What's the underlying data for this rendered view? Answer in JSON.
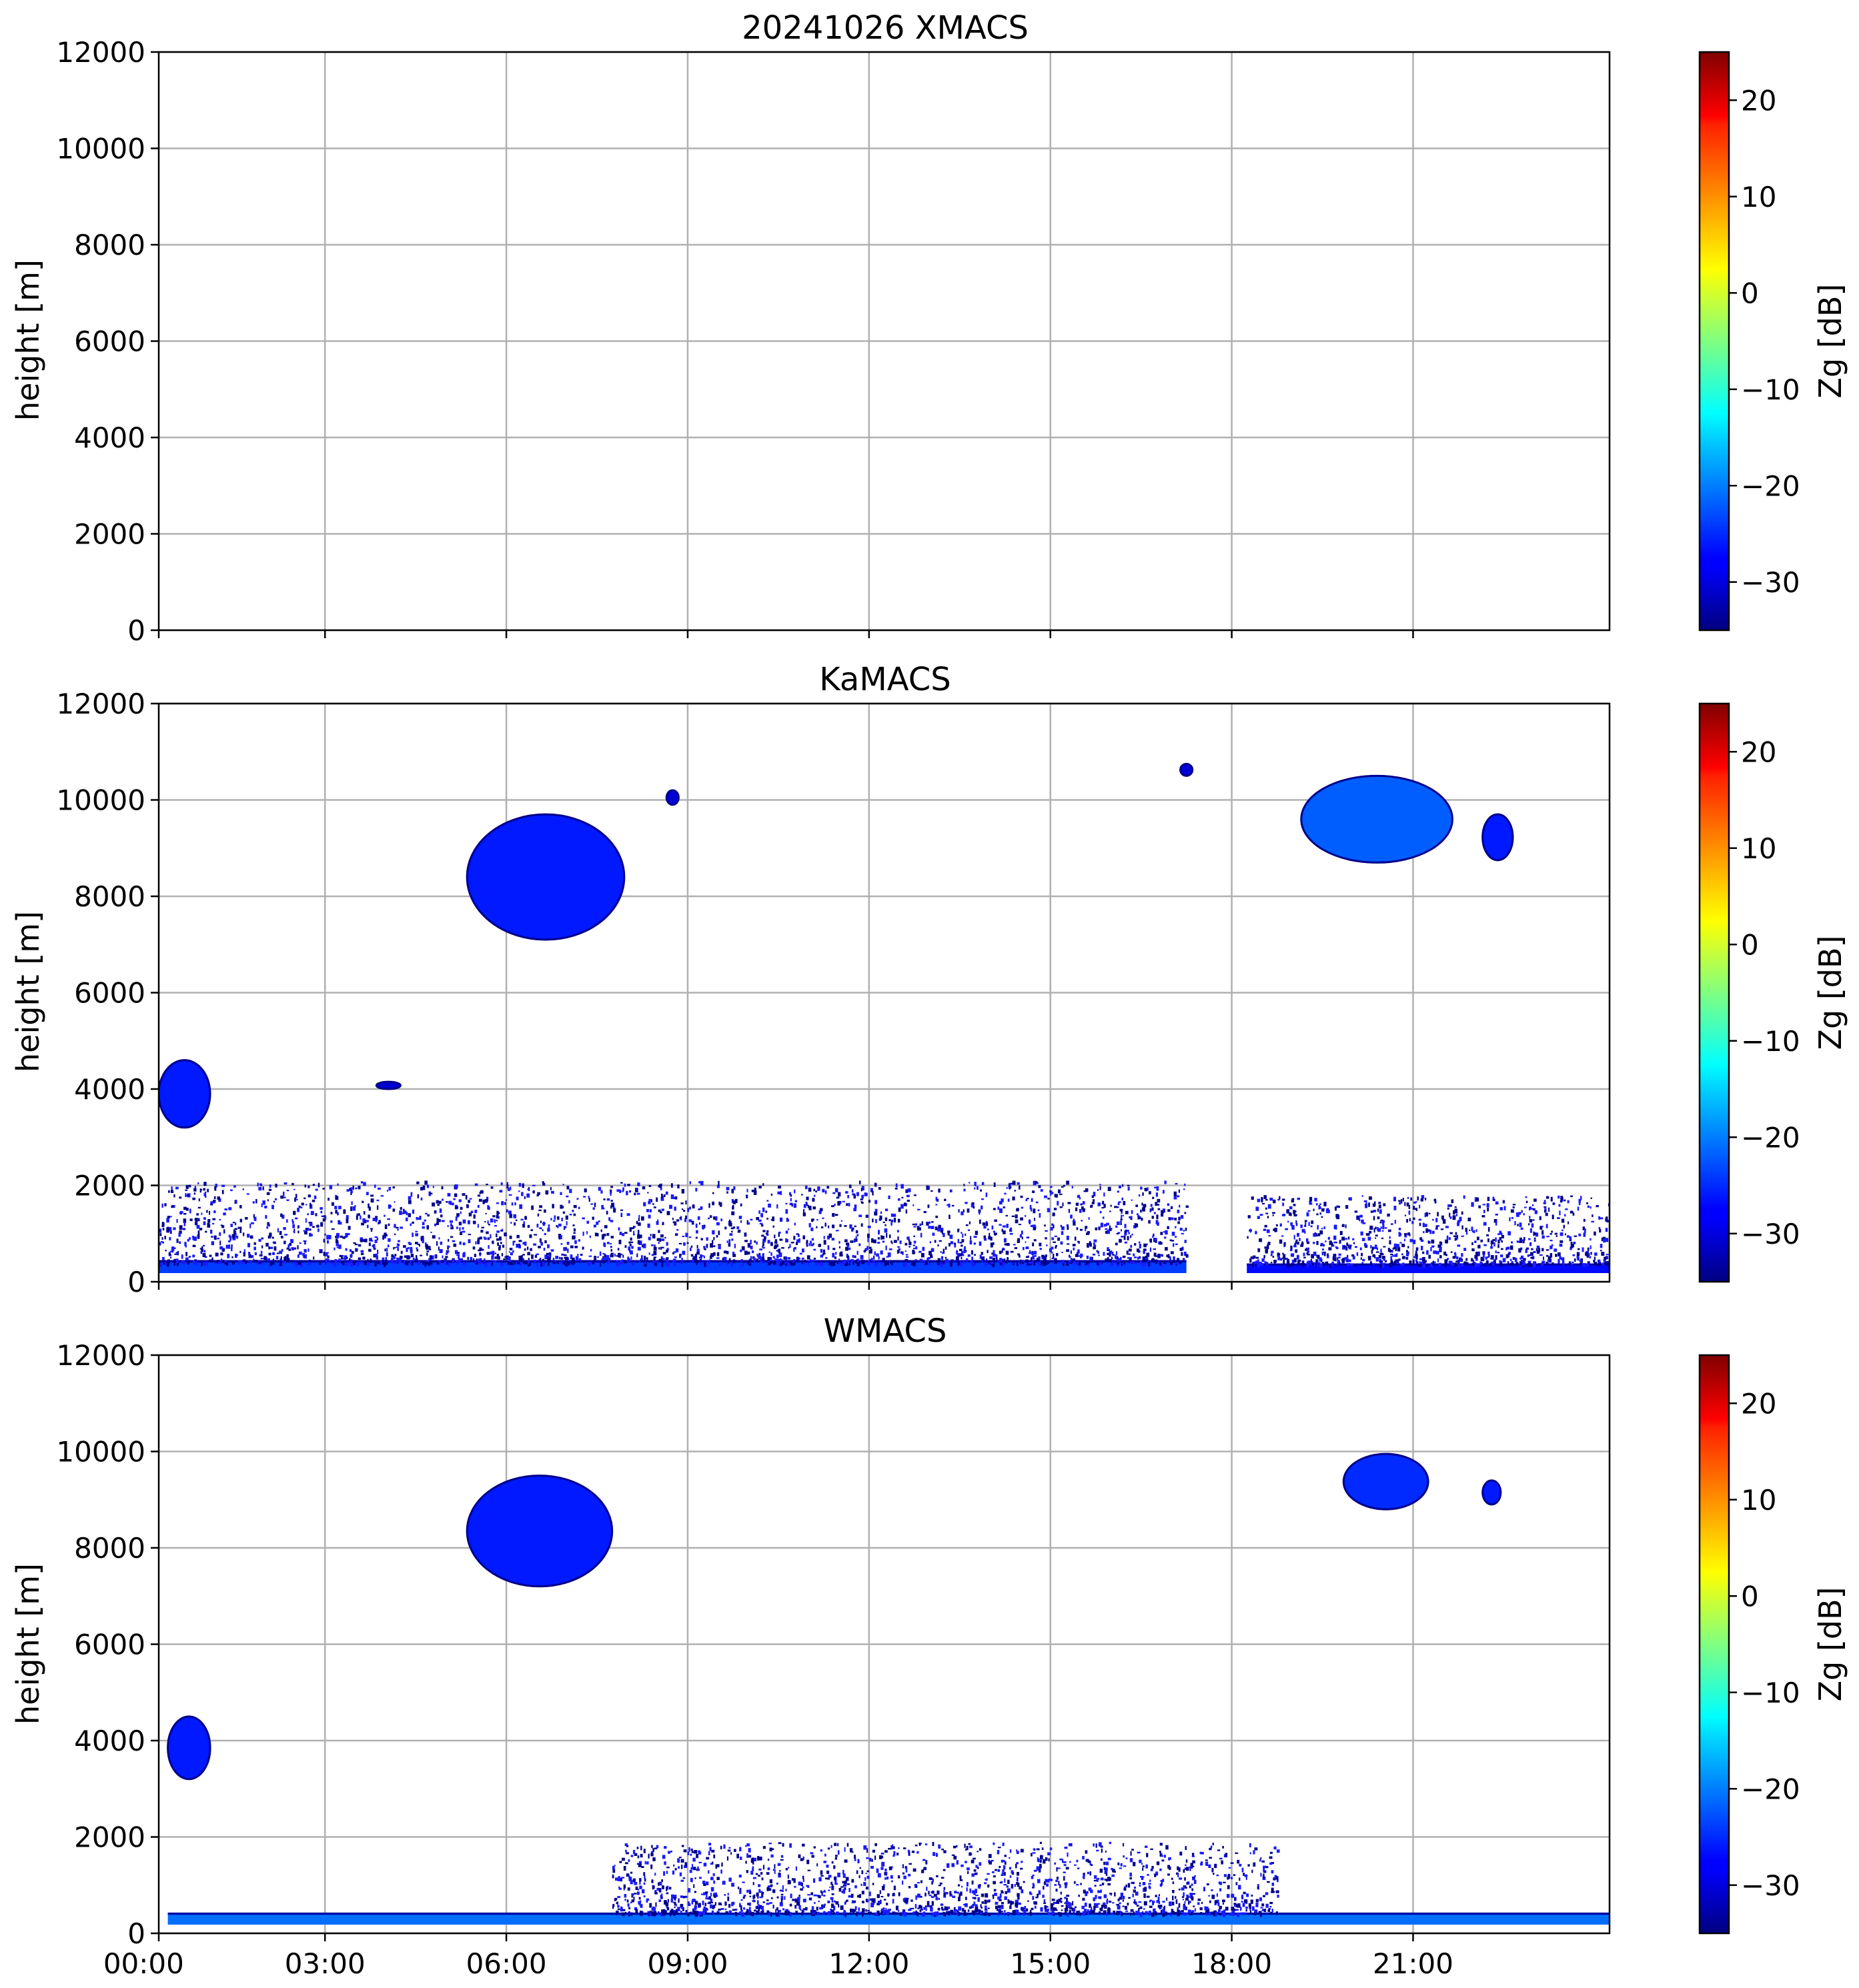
{
  "chart_data": [
    {
      "type": "heatmap",
      "title": "20241026 XMACS",
      "ylabel": "height [m]",
      "xlabel": "",
      "xlim": [
        "00:00",
        "24:00"
      ],
      "ylim": [
        0,
        12000
      ],
      "yticks": [
        "0",
        "2000",
        "4000",
        "6000",
        "8000",
        "10000",
        "12000"
      ],
      "xticks": [],
      "grid": true,
      "colorbar": {
        "label": "Zg [dB]",
        "range": [
          -35,
          25
        ],
        "ticks": [
          "−30",
          "−20",
          "−10",
          "0",
          "10",
          "20"
        ],
        "colormap": "jet"
      },
      "features": []
    },
    {
      "type": "heatmap",
      "title": "KaMACS",
      "ylabel": "height [m]",
      "xlabel": "",
      "xlim": [
        "00:00",
        "24:00"
      ],
      "ylim": [
        0,
        12000
      ],
      "yticks": [
        "0",
        "2000",
        "4000",
        "6000",
        "8000",
        "10000",
        "12000"
      ],
      "xticks": [],
      "grid": true,
      "colorbar": {
        "label": "Zg [dB]",
        "range": [
          -35,
          25
        ],
        "ticks": [
          "−30",
          "−20",
          "−10",
          "0",
          "10",
          "20"
        ],
        "colormap": "jet"
      },
      "features": [
        {
          "kind": "surface-layer",
          "t_start": 0.0,
          "t_end": 17.0,
          "h_bottom": 180,
          "h_top": 450,
          "zg": -24
        },
        {
          "kind": "surface-layer",
          "t_start": 18.0,
          "t_end": 24.0,
          "h_bottom": 180,
          "h_top": 380,
          "zg": -27
        },
        {
          "kind": "boundary-speckle",
          "t_start": 0.0,
          "t_end": 17.0,
          "h_bottom": 400,
          "h_top": 2100,
          "zg": -32
        },
        {
          "kind": "boundary-speckle",
          "t_start": 18.0,
          "t_end": 24.0,
          "h_bottom": 380,
          "h_top": 1800,
          "zg": -32
        },
        {
          "kind": "cloud",
          "t_start": 0.0,
          "t_end": 0.85,
          "h_bottom": 3200,
          "h_top": 4600,
          "zg": -26
        },
        {
          "kind": "cloud",
          "t_start": 5.1,
          "t_end": 7.7,
          "h_bottom": 7100,
          "h_top": 9700,
          "zg": -26
        },
        {
          "kind": "cloud",
          "t_start": 18.9,
          "t_end": 21.4,
          "h_bottom": 8700,
          "h_top": 10500,
          "zg": -22
        },
        {
          "kind": "cloud",
          "t_start": 21.9,
          "t_end": 22.4,
          "h_bottom": 8750,
          "h_top": 9700,
          "zg": -26
        },
        {
          "kind": "cloud",
          "t_start": 8.4,
          "t_end": 8.6,
          "h_bottom": 9900,
          "h_top": 10200,
          "zg": -30
        },
        {
          "kind": "cloud",
          "t_start": 16.9,
          "t_end": 17.1,
          "h_bottom": 10500,
          "h_top": 10750,
          "zg": -30
        },
        {
          "kind": "cloud",
          "t_start": 3.6,
          "t_end": 4.0,
          "h_bottom": 4000,
          "h_top": 4150,
          "zg": -30
        }
      ]
    },
    {
      "type": "heatmap",
      "title": "WMACS",
      "ylabel": "height [m]",
      "xlabel": "",
      "xlim": [
        "00:00",
        "24:00"
      ],
      "ylim": [
        0,
        12000
      ],
      "yticks": [
        "0",
        "2000",
        "4000",
        "6000",
        "8000",
        "10000",
        "12000"
      ],
      "xticks": [
        "00:00",
        "03:00",
        "06:00",
        "09:00",
        "12:00",
        "15:00",
        "18:00",
        "21:00"
      ],
      "grid": true,
      "colorbar": {
        "label": "Zg [dB]",
        "range": [
          -35,
          25
        ],
        "ticks": [
          "−30",
          "−20",
          "−10",
          "0",
          "10",
          "20"
        ],
        "colormap": "jet"
      },
      "features": [
        {
          "kind": "surface-layer",
          "t_start": 0.15,
          "t_end": 24.0,
          "h_bottom": 180,
          "h_top": 430,
          "zg": -21
        },
        {
          "kind": "boundary-speckle",
          "t_start": 7.5,
          "t_end": 18.5,
          "h_bottom": 430,
          "h_top": 1900,
          "zg": -32
        },
        {
          "kind": "cloud",
          "t_start": 0.15,
          "t_end": 0.85,
          "h_bottom": 3200,
          "h_top": 4500,
          "zg": -26
        },
        {
          "kind": "cloud",
          "t_start": 5.1,
          "t_end": 7.5,
          "h_bottom": 7200,
          "h_top": 9500,
          "zg": -26
        },
        {
          "kind": "cloud",
          "t_start": 19.6,
          "t_end": 21.0,
          "h_bottom": 8800,
          "h_top": 9950,
          "zg": -25
        },
        {
          "kind": "cloud",
          "t_start": 21.9,
          "t_end": 22.2,
          "h_bottom": 8900,
          "h_top": 9400,
          "zg": -26
        }
      ]
    }
  ]
}
